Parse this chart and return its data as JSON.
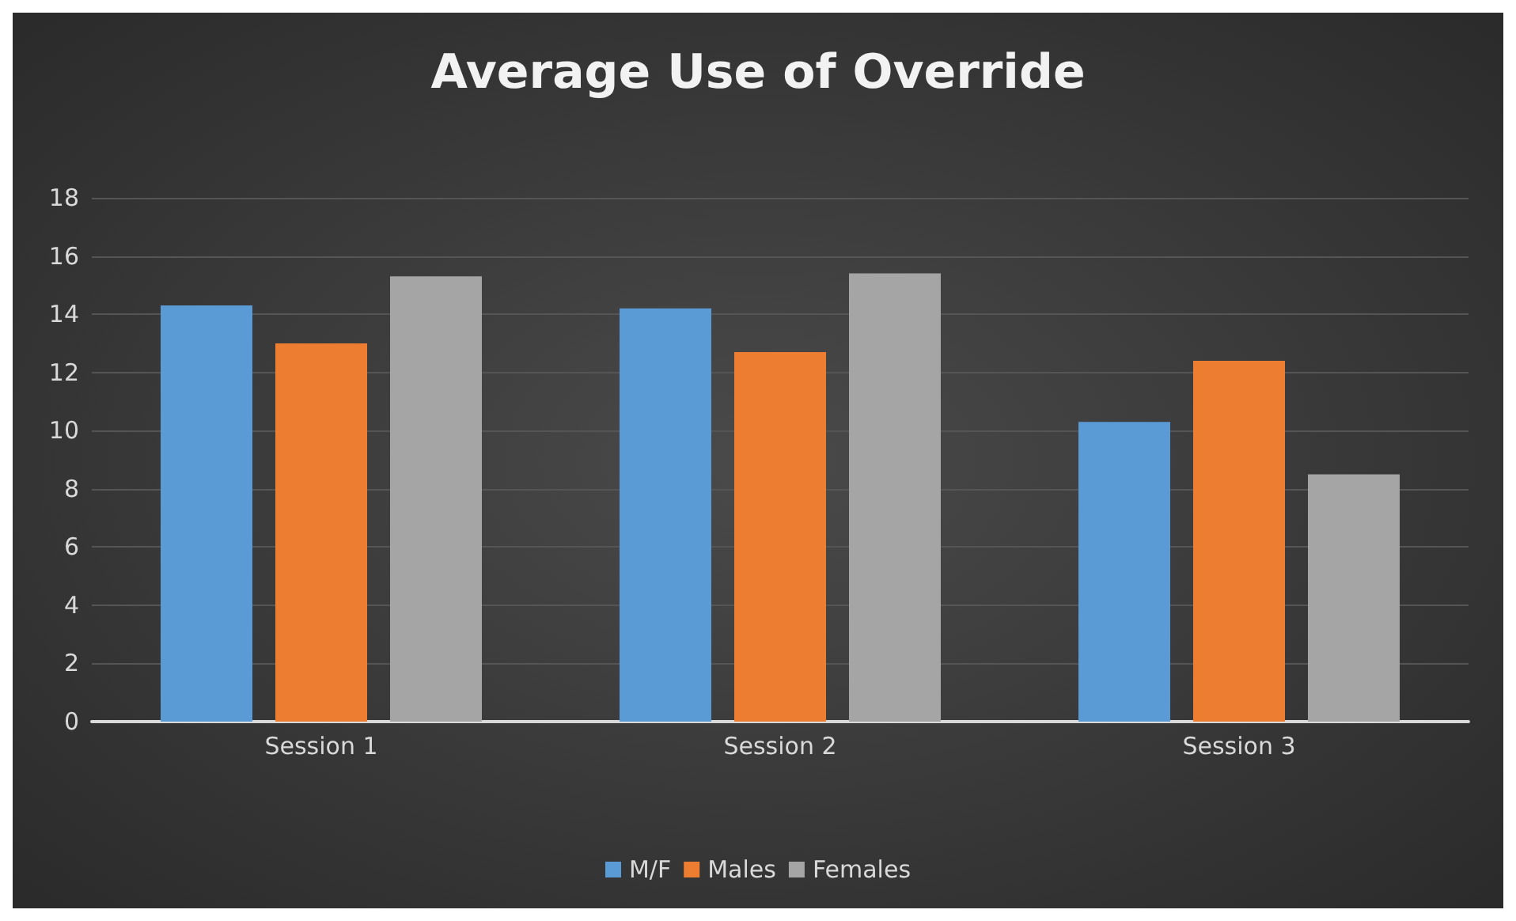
{
  "chart_data": {
    "type": "bar",
    "title": "Average Use of Override",
    "categories": [
      "Session 1",
      "Session 2",
      "Session 3"
    ],
    "series": [
      {
        "name": "M/F",
        "color": "#5b9bd5",
        "values": [
          14.3,
          14.2,
          10.3
        ]
      },
      {
        "name": "Males",
        "color": "#ed7d31",
        "values": [
          13.0,
          12.7,
          12.4
        ]
      },
      {
        "name": "Females",
        "color": "#a5a5a5",
        "values": [
          15.3,
          15.4,
          8.5
        ]
      }
    ],
    "ylim": [
      0,
      18
    ],
    "yticks": [
      0,
      2,
      4,
      6,
      8,
      10,
      12,
      14,
      16,
      18
    ],
    "grid": "y",
    "legend": "bottom"
  }
}
